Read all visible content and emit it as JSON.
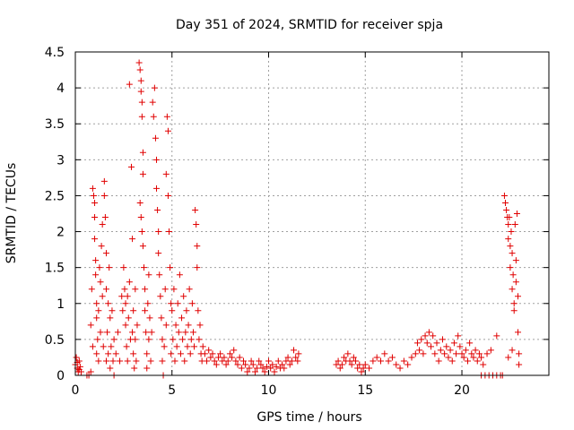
{
  "chart_data": {
    "type": "scatter",
    "title": "Day 351 of 2024, SRMTID for receiver spja",
    "xlabel": "GPS time / hours",
    "ylabel": "SRMTID / TECUs",
    "xlim": [
      0,
      24.5
    ],
    "ylim": [
      0,
      4.5
    ],
    "xticks": [
      0,
      5,
      10,
      15,
      20
    ],
    "xtick_labels": [
      "0",
      "5",
      "10",
      "15",
      "20"
    ],
    "yticks": [
      0,
      0.5,
      1,
      1.5,
      2,
      2.5,
      3,
      3.5,
      4,
      4.5
    ],
    "ytick_labels": [
      "0",
      "0.5",
      "1",
      "1.5",
      "2",
      "2.5",
      "3",
      "3.5",
      "4",
      "4.5"
    ],
    "grid": true,
    "marker": "plus",
    "marker_color": "#e00000",
    "series": [
      {
        "name": "SRMTID",
        "points": [
          [
            0.0,
            0.15
          ],
          [
            0.05,
            0.25
          ],
          [
            0.1,
            0.1
          ],
          [
            0.15,
            0.05
          ],
          [
            0.2,
            0.2
          ],
          [
            0.25,
            0.12
          ],
          [
            0.3,
            0.05
          ],
          [
            0.1,
            0.18
          ],
          [
            0.2,
            0.08
          ],
          [
            0.6,
            0.0
          ],
          [
            0.7,
            0.0
          ],
          [
            0.8,
            0.05
          ],
          [
            0.8,
            0.7
          ],
          [
            0.85,
            1.2
          ],
          [
            0.9,
            0.4
          ],
          [
            0.9,
            2.6
          ],
          [
            0.95,
            2.5
          ],
          [
            1.0,
            2.4
          ],
          [
            1.0,
            2.2
          ],
          [
            1.0,
            1.9
          ],
          [
            1.05,
            1.6
          ],
          [
            1.05,
            1.4
          ],
          [
            1.1,
            1.0
          ],
          [
            1.1,
            0.8
          ],
          [
            1.1,
            0.3
          ],
          [
            1.15,
            0.5
          ],
          [
            1.2,
            0.9
          ],
          [
            1.2,
            0.2
          ],
          [
            1.25,
            1.5
          ],
          [
            1.3,
            1.3
          ],
          [
            1.3,
            0.6
          ],
          [
            1.35,
            1.8
          ],
          [
            1.4,
            1.1
          ],
          [
            1.4,
            2.1
          ],
          [
            1.45,
            0.4
          ],
          [
            1.5,
            2.7
          ],
          [
            1.5,
            2.5
          ],
          [
            1.55,
            2.2
          ],
          [
            1.6,
            1.7
          ],
          [
            1.6,
            1.2
          ],
          [
            1.6,
            0.2
          ],
          [
            1.65,
            0.6
          ],
          [
            1.7,
            1.0
          ],
          [
            1.7,
            0.3
          ],
          [
            1.75,
            1.5
          ],
          [
            1.8,
            0.8
          ],
          [
            1.8,
            0.1
          ],
          [
            1.85,
            0.4
          ],
          [
            1.9,
            0.9
          ],
          [
            1.95,
            0.2
          ],
          [
            2.0,
            0.5
          ],
          [
            2.0,
            0.0
          ],
          [
            2.1,
            0.3
          ],
          [
            2.2,
            0.6
          ],
          [
            2.3,
            0.2
          ],
          [
            2.4,
            1.1
          ],
          [
            2.45,
            0.9
          ],
          [
            2.5,
            1.5
          ],
          [
            2.55,
            1.2
          ],
          [
            2.6,
            0.7
          ],
          [
            2.6,
            1.0
          ],
          [
            2.65,
            0.4
          ],
          [
            2.7,
            1.1
          ],
          [
            2.7,
            0.2
          ],
          [
            2.75,
            0.8
          ],
          [
            2.8,
            1.3
          ],
          [
            2.85,
            0.5
          ],
          [
            2.9,
            2.9
          ],
          [
            2.95,
            1.9
          ],
          [
            2.95,
            0.6
          ],
          [
            3.0,
            0.3
          ],
          [
            3.0,
            0.9
          ],
          [
            3.05,
            0.1
          ],
          [
            3.1,
            0.5
          ],
          [
            3.1,
            1.2
          ],
          [
            3.15,
            0.2
          ],
          [
            3.2,
            0.7
          ],
          [
            2.8,
            4.05
          ],
          [
            3.3,
            4.35
          ],
          [
            3.35,
            4.25
          ],
          [
            3.4,
            4.1
          ],
          [
            3.4,
            3.95
          ],
          [
            3.45,
            3.8
          ],
          [
            3.45,
            3.6
          ],
          [
            3.5,
            3.1
          ],
          [
            3.5,
            2.8
          ],
          [
            3.35,
            2.4
          ],
          [
            3.4,
            2.2
          ],
          [
            3.45,
            2.0
          ],
          [
            3.5,
            1.8
          ],
          [
            3.55,
            1.5
          ],
          [
            3.6,
            1.2
          ],
          [
            3.6,
            0.9
          ],
          [
            3.65,
            0.6
          ],
          [
            3.7,
            0.3
          ],
          [
            3.7,
            0.1
          ],
          [
            3.75,
            1.0
          ],
          [
            3.8,
            0.5
          ],
          [
            3.8,
            1.4
          ],
          [
            3.85,
            0.8
          ],
          [
            3.9,
            0.2
          ],
          [
            3.95,
            0.6
          ],
          [
            4.0,
            3.8
          ],
          [
            4.05,
            3.6
          ],
          [
            4.1,
            4.0
          ],
          [
            4.15,
            3.3
          ],
          [
            4.2,
            3.0
          ],
          [
            4.2,
            2.6
          ],
          [
            4.25,
            2.3
          ],
          [
            4.3,
            2.0
          ],
          [
            4.3,
            1.7
          ],
          [
            4.35,
            1.4
          ],
          [
            4.4,
            1.1
          ],
          [
            4.45,
            0.8
          ],
          [
            4.5,
            0.5
          ],
          [
            4.5,
            0.2
          ],
          [
            4.55,
            0.0
          ],
          [
            4.6,
            0.4
          ],
          [
            4.65,
            1.2
          ],
          [
            4.7,
            0.7
          ],
          [
            4.7,
            2.8
          ],
          [
            4.75,
            3.6
          ],
          [
            4.8,
            3.4
          ],
          [
            4.8,
            2.5
          ],
          [
            4.85,
            2.0
          ],
          [
            4.9,
            1.5
          ],
          [
            4.95,
            1.0
          ],
          [
            4.95,
            0.3
          ],
          [
            5.0,
            0.9
          ],
          [
            5.05,
            0.5
          ],
          [
            5.1,
            1.2
          ],
          [
            5.15,
            0.2
          ],
          [
            5.2,
            0.7
          ],
          [
            5.25,
            0.4
          ],
          [
            5.3,
            1.0
          ],
          [
            5.35,
            0.6
          ],
          [
            5.4,
            1.4
          ],
          [
            5.45,
            0.3
          ],
          [
            5.5,
            0.8
          ],
          [
            5.55,
            0.5
          ],
          [
            5.6,
            1.1
          ],
          [
            5.65,
            0.2
          ],
          [
            5.7,
            0.6
          ],
          [
            5.75,
            0.9
          ],
          [
            5.8,
            0.4
          ],
          [
            5.85,
            0.7
          ],
          [
            5.9,
            1.2
          ],
          [
            5.95,
            0.3
          ],
          [
            6.0,
            0.5
          ],
          [
            6.05,
            1.0
          ],
          [
            6.1,
            0.6
          ],
          [
            6.15,
            0.4
          ],
          [
            6.2,
            2.3
          ],
          [
            6.25,
            2.1
          ],
          [
            6.3,
            1.8
          ],
          [
            6.3,
            1.5
          ],
          [
            6.35,
            0.9
          ],
          [
            6.4,
            0.5
          ],
          [
            6.45,
            0.7
          ],
          [
            6.5,
            0.3
          ],
          [
            6.55,
            0.2
          ],
          [
            6.6,
            0.4
          ],
          [
            6.7,
            0.3
          ],
          [
            6.8,
            0.2
          ],
          [
            6.9,
            0.35
          ],
          [
            7.0,
            0.25
          ],
          [
            7.1,
            0.3
          ],
          [
            7.2,
            0.2
          ],
          [
            7.3,
            0.15
          ],
          [
            7.4,
            0.25
          ],
          [
            7.5,
            0.3
          ],
          [
            7.6,
            0.2
          ],
          [
            7.7,
            0.25
          ],
          [
            7.8,
            0.15
          ],
          [
            7.9,
            0.2
          ],
          [
            8.0,
            0.3
          ],
          [
            8.1,
            0.25
          ],
          [
            8.2,
            0.35
          ],
          [
            8.3,
            0.2
          ],
          [
            8.4,
            0.15
          ],
          [
            8.5,
            0.25
          ],
          [
            8.6,
            0.1
          ],
          [
            8.7,
            0.2
          ],
          [
            8.8,
            0.15
          ],
          [
            8.9,
            0.05
          ],
          [
            9.0,
            0.1
          ],
          [
            9.1,
            0.2
          ],
          [
            9.2,
            0.15
          ],
          [
            9.3,
            0.05
          ],
          [
            9.4,
            0.1
          ],
          [
            9.5,
            0.2
          ],
          [
            9.6,
            0.15
          ],
          [
            9.7,
            0.1
          ],
          [
            9.8,
            0.05
          ],
          [
            9.9,
            0.12
          ],
          [
            10.0,
            0.2
          ],
          [
            10.1,
            0.1
          ],
          [
            10.2,
            0.15
          ],
          [
            10.3,
            0.05
          ],
          [
            10.4,
            0.12
          ],
          [
            10.5,
            0.2
          ],
          [
            10.6,
            0.1
          ],
          [
            10.7,
            0.15
          ],
          [
            10.8,
            0.1
          ],
          [
            10.9,
            0.2
          ],
          [
            11.0,
            0.25
          ],
          [
            11.1,
            0.15
          ],
          [
            11.2,
            0.2
          ],
          [
            11.3,
            0.35
          ],
          [
            11.4,
            0.25
          ],
          [
            11.5,
            0.2
          ],
          [
            11.55,
            0.3
          ],
          [
            13.5,
            0.15
          ],
          [
            13.6,
            0.2
          ],
          [
            13.7,
            0.1
          ],
          [
            13.8,
            0.15
          ],
          [
            13.9,
            0.25
          ],
          [
            14.0,
            0.2
          ],
          [
            14.1,
            0.3
          ],
          [
            14.2,
            0.2
          ],
          [
            14.3,
            0.15
          ],
          [
            14.4,
            0.25
          ],
          [
            14.5,
            0.2
          ],
          [
            14.6,
            0.1
          ],
          [
            14.7,
            0.15
          ],
          [
            14.8,
            0.05
          ],
          [
            14.9,
            0.1
          ],
          [
            15.0,
            0.15
          ],
          [
            15.2,
            0.1
          ],
          [
            15.4,
            0.2
          ],
          [
            15.6,
            0.25
          ],
          [
            15.8,
            0.2
          ],
          [
            16.0,
            0.3
          ],
          [
            16.2,
            0.2
          ],
          [
            16.4,
            0.25
          ],
          [
            16.6,
            0.15
          ],
          [
            16.8,
            0.1
          ],
          [
            17.0,
            0.2
          ],
          [
            17.2,
            0.15
          ],
          [
            17.4,
            0.25
          ],
          [
            17.6,
            0.3
          ],
          [
            17.7,
            0.45
          ],
          [
            17.8,
            0.35
          ],
          [
            17.9,
            0.5
          ],
          [
            18.0,
            0.3
          ],
          [
            18.1,
            0.55
          ],
          [
            18.2,
            0.45
          ],
          [
            18.3,
            0.6
          ],
          [
            18.4,
            0.4
          ],
          [
            18.5,
            0.55
          ],
          [
            18.6,
            0.3
          ],
          [
            18.7,
            0.45
          ],
          [
            18.8,
            0.2
          ],
          [
            18.9,
            0.35
          ],
          [
            19.0,
            0.5
          ],
          [
            19.1,
            0.3
          ],
          [
            19.2,
            0.4
          ],
          [
            19.3,
            0.25
          ],
          [
            19.4,
            0.35
          ],
          [
            19.5,
            0.2
          ],
          [
            19.6,
            0.45
          ],
          [
            19.7,
            0.3
          ],
          [
            19.8,
            0.55
          ],
          [
            19.9,
            0.4
          ],
          [
            20.0,
            0.3
          ],
          [
            20.1,
            0.25
          ],
          [
            20.2,
            0.35
          ],
          [
            20.3,
            0.2
          ],
          [
            20.4,
            0.45
          ],
          [
            20.5,
            0.3
          ],
          [
            20.6,
            0.25
          ],
          [
            20.7,
            0.35
          ],
          [
            20.8,
            0.2
          ],
          [
            20.9,
            0.3
          ],
          [
            21.0,
            0.25
          ],
          [
            21.1,
            0.15
          ],
          [
            21.3,
            0.3
          ],
          [
            21.5,
            0.35
          ],
          [
            21.8,
            0.55
          ],
          [
            21.0,
            0.0
          ],
          [
            21.2,
            0.0
          ],
          [
            21.4,
            0.0
          ],
          [
            21.6,
            0.0
          ],
          [
            21.8,
            0.0
          ],
          [
            22.0,
            0.0
          ],
          [
            22.1,
            0.0
          ],
          [
            22.2,
            2.5
          ],
          [
            22.25,
            2.4
          ],
          [
            22.3,
            2.3
          ],
          [
            22.35,
            2.2
          ],
          [
            22.4,
            2.1
          ],
          [
            22.4,
            1.9
          ],
          [
            22.45,
            2.2
          ],
          [
            22.5,
            1.8
          ],
          [
            22.5,
            1.5
          ],
          [
            22.55,
            2.0
          ],
          [
            22.6,
            1.7
          ],
          [
            22.6,
            1.2
          ],
          [
            22.65,
            1.4
          ],
          [
            22.7,
            1.0
          ],
          [
            22.7,
            0.9
          ],
          [
            22.75,
            2.1
          ],
          [
            22.8,
            1.6
          ],
          [
            22.8,
            1.3
          ],
          [
            22.85,
            2.25
          ],
          [
            22.9,
            1.1
          ],
          [
            22.9,
            0.6
          ],
          [
            22.95,
            0.3
          ],
          [
            22.95,
            0.15
          ],
          [
            22.6,
            0.35
          ],
          [
            22.4,
            0.25
          ]
        ]
      }
    ]
  }
}
